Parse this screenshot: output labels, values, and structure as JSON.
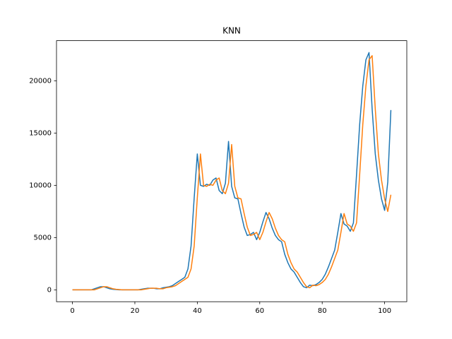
{
  "chart_data": {
    "type": "line",
    "title": "KNN",
    "x": [
      0,
      1,
      2,
      3,
      4,
      5,
      6,
      7,
      8,
      9,
      10,
      11,
      12,
      13,
      14,
      15,
      16,
      17,
      18,
      19,
      20,
      21,
      22,
      23,
      24,
      25,
      26,
      27,
      28,
      29,
      30,
      31,
      32,
      33,
      34,
      35,
      36,
      37,
      38,
      39,
      40,
      41,
      42,
      43,
      44,
      45,
      46,
      47,
      48,
      49,
      50,
      51,
      52,
      53,
      54,
      55,
      56,
      57,
      58,
      59,
      60,
      61,
      62,
      63,
      64,
      65,
      66,
      67,
      68,
      69,
      70,
      71,
      72,
      73,
      74,
      75,
      76,
      77,
      78,
      79,
      80,
      81,
      82,
      83,
      84,
      85,
      86,
      87,
      88,
      89,
      90,
      91,
      92,
      93,
      94,
      95,
      96,
      97,
      98,
      99,
      100,
      101,
      102
    ],
    "series": [
      {
        "color": "#1f77b4",
        "values": [
          0,
          0,
          0,
          0,
          0,
          0,
          0,
          100,
          200,
          300,
          300,
          200,
          100,
          50,
          30,
          0,
          0,
          0,
          0,
          0,
          0,
          0,
          50,
          100,
          150,
          150,
          150,
          100,
          100,
          200,
          250,
          300,
          400,
          600,
          800,
          1000,
          1200,
          2000,
          4200,
          8800,
          13000,
          10000,
          9900,
          10100,
          10000,
          10500,
          10700,
          9500,
          9200,
          10200,
          14200,
          9900,
          8800,
          8700,
          7300,
          6000,
          5200,
          5300,
          5500,
          4800,
          5500,
          6500,
          7400,
          6800,
          5900,
          5200,
          4800,
          4600,
          3400,
          2600,
          2000,
          1700,
          1200,
          700,
          300,
          200,
          450,
          400,
          500,
          700,
          1000,
          1500,
          2200,
          3000,
          3800,
          5500,
          7300,
          6300,
          6100,
          5600,
          6400,
          11000,
          15800,
          19500,
          22000,
          22700,
          17300,
          13000,
          10500,
          8700,
          7600,
          10300,
          17200
        ]
      },
      {
        "color": "#ff7f0e",
        "values": [
          0,
          0,
          0,
          0,
          0,
          0,
          0,
          0,
          100,
          200,
          300,
          300,
          200,
          100,
          50,
          30,
          0,
          0,
          0,
          0,
          0,
          0,
          0,
          50,
          100,
          150,
          150,
          150,
          100,
          100,
          200,
          250,
          300,
          400,
          600,
          800,
          1000,
          1200,
          2000,
          4200,
          8800,
          13000,
          10000,
          9900,
          10100,
          10000,
          10500,
          10700,
          9500,
          9200,
          10200,
          13900,
          9900,
          8800,
          8700,
          7300,
          6000,
          5200,
          5300,
          5500,
          4800,
          5500,
          6500,
          7400,
          6800,
          5900,
          5200,
          4800,
          4600,
          3400,
          2600,
          2000,
          1700,
          1200,
          700,
          300,
          200,
          450,
          400,
          500,
          700,
          1000,
          1500,
          2200,
          3000,
          3800,
          5500,
          7300,
          6300,
          6100,
          5600,
          6400,
          11000,
          15800,
          19500,
          22000,
          22400,
          17300,
          13000,
          10500,
          8700,
          7500,
          9100
        ]
      }
    ],
    "xlim": [
      -5.1,
      107.1
    ],
    "ylim": [
      -1135,
      23835
    ],
    "xticks": [
      0,
      20,
      40,
      60,
      80,
      100
    ],
    "yticks": [
      0,
      5000,
      10000,
      15000,
      20000
    ]
  }
}
